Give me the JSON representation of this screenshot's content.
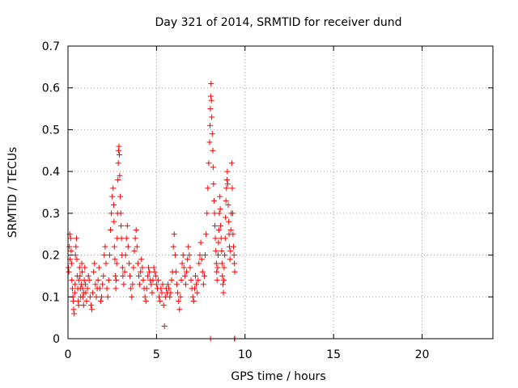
{
  "chart_data": {
    "type": "scatter",
    "title": "Day 321 of 2014, SRMTID for receiver dund",
    "xlabel": "GPS time / hours",
    "ylabel": "SRMTID / TECUs",
    "xlim": [
      0,
      24
    ],
    "ylim": [
      0,
      0.7
    ],
    "xticks": [
      0,
      5,
      10,
      15,
      20
    ],
    "yticks": [
      0,
      0.1,
      0.2,
      0.3,
      0.4,
      0.5,
      0.6,
      0.7
    ],
    "ytick_labels": [
      "0",
      "0.1",
      "0.2",
      "0.3",
      "0.4",
      "0.5",
      "0.6",
      "0.7"
    ],
    "grid": true,
    "marker": "plus",
    "color": "#ff0000",
    "series": [
      {
        "name": "SRMTID",
        "points": [
          [
            0.02,
            0.17
          ],
          [
            0.05,
            0.16
          ],
          [
            0.08,
            0.22
          ],
          [
            0.1,
            0.25
          ],
          [
            0.12,
            0.19
          ],
          [
            0.15,
            0.24
          ],
          [
            0.18,
            0.21
          ],
          [
            0.2,
            0.18
          ],
          [
            0.22,
            0.14
          ],
          [
            0.25,
            0.12
          ],
          [
            0.28,
            0.1
          ],
          [
            0.3,
            0.09
          ],
          [
            0.32,
            0.07
          ],
          [
            0.35,
            0.06
          ],
          [
            0.38,
            0.11
          ],
          [
            0.4,
            0.13
          ],
          [
            0.42,
            0.2
          ],
          [
            0.45,
            0.22
          ],
          [
            0.48,
            0.24
          ],
          [
            0.5,
            0.19
          ],
          [
            0.52,
            0.15
          ],
          [
            0.55,
            0.12
          ],
          [
            0.58,
            0.09
          ],
          [
            0.6,
            0.08
          ],
          [
            0.62,
            0.14
          ],
          [
            0.65,
            0.17
          ],
          [
            0.68,
            0.15
          ],
          [
            0.7,
            0.12
          ],
          [
            0.72,
            0.1
          ],
          [
            0.75,
            0.13
          ],
          [
            0.78,
            0.18
          ],
          [
            0.8,
            0.16
          ],
          [
            0.82,
            0.12
          ],
          [
            0.85,
            0.1
          ],
          [
            0.88,
            0.08
          ],
          [
            0.9,
            0.11
          ],
          [
            0.92,
            0.14
          ],
          [
            0.95,
            0.17
          ],
          [
            0.98,
            0.13
          ],
          [
            1.0,
            0.11
          ],
          [
            1.05,
            0.09
          ],
          [
            1.1,
            0.12
          ],
          [
            1.15,
            0.15
          ],
          [
            1.2,
            0.14
          ],
          [
            1.25,
            0.1
          ],
          [
            1.3,
            0.08
          ],
          [
            1.35,
            0.07
          ],
          [
            1.4,
            0.11
          ],
          [
            1.45,
            0.16
          ],
          [
            1.5,
            0.18
          ],
          [
            1.55,
            0.13
          ],
          [
            1.6,
            0.1
          ],
          [
            1.65,
            0.12
          ],
          [
            1.7,
            0.14
          ],
          [
            1.75,
            0.17
          ],
          [
            1.8,
            0.12
          ],
          [
            1.85,
            0.09
          ],
          [
            1.9,
            0.1
          ],
          [
            1.95,
            0.13
          ],
          [
            2.0,
            0.15
          ],
          [
            2.05,
            0.2
          ],
          [
            2.1,
            0.22
          ],
          [
            2.15,
            0.18
          ],
          [
            2.2,
            0.12
          ],
          [
            2.25,
            0.1
          ],
          [
            2.3,
            0.14
          ],
          [
            2.35,
            0.2
          ],
          [
            2.4,
            0.26
          ],
          [
            2.45,
            0.3
          ],
          [
            2.5,
            0.34
          ],
          [
            2.55,
            0.36
          ],
          [
            2.58,
            0.32
          ],
          [
            2.6,
            0.28
          ],
          [
            2.62,
            0.22
          ],
          [
            2.65,
            0.19
          ],
          [
            2.68,
            0.15
          ],
          [
            2.7,
            0.12
          ],
          [
            2.72,
            0.14
          ],
          [
            2.75,
            0.18
          ],
          [
            2.78,
            0.24
          ],
          [
            2.8,
            0.3
          ],
          [
            2.82,
            0.38
          ],
          [
            2.84,
            0.42
          ],
          [
            2.86,
            0.45
          ],
          [
            2.88,
            0.46
          ],
          [
            2.9,
            0.44
          ],
          [
            2.92,
            0.39
          ],
          [
            2.95,
            0.34
          ],
          [
            2.98,
            0.3
          ],
          [
            3.0,
            0.27
          ],
          [
            3.02,
            0.24
          ],
          [
            3.05,
            0.2
          ],
          [
            3.08,
            0.17
          ],
          [
            3.1,
            0.15
          ],
          [
            3.15,
            0.13
          ],
          [
            3.2,
            0.16
          ],
          [
            3.25,
            0.2
          ],
          [
            3.3,
            0.24
          ],
          [
            3.35,
            0.27
          ],
          [
            3.4,
            0.22
          ],
          [
            3.45,
            0.18
          ],
          [
            3.5,
            0.15
          ],
          [
            3.55,
            0.12
          ],
          [
            3.6,
            0.1
          ],
          [
            3.65,
            0.13
          ],
          [
            3.7,
            0.17
          ],
          [
            3.75,
            0.21
          ],
          [
            3.8,
            0.24
          ],
          [
            3.85,
            0.26
          ],
          [
            3.9,
            0.22
          ],
          [
            3.95,
            0.18
          ],
          [
            4.0,
            0.15
          ],
          [
            4.05,
            0.13
          ],
          [
            4.1,
            0.16
          ],
          [
            4.15,
            0.19
          ],
          [
            4.2,
            0.17
          ],
          [
            4.25,
            0.14
          ],
          [
            4.3,
            0.12
          ],
          [
            4.35,
            0.1
          ],
          [
            4.4,
            0.09
          ],
          [
            4.45,
            0.12
          ],
          [
            4.5,
            0.15
          ],
          [
            4.55,
            0.17
          ],
          [
            4.6,
            0.16
          ],
          [
            4.65,
            0.14
          ],
          [
            4.7,
            0.13
          ],
          [
            4.75,
            0.11
          ],
          [
            4.8,
            0.14
          ],
          [
            4.85,
            0.17
          ],
          [
            4.9,
            0.16
          ],
          [
            4.95,
            0.15
          ],
          [
            5.0,
            0.13
          ],
          [
            5.05,
            0.12
          ],
          [
            5.1,
            0.14
          ],
          [
            5.15,
            0.1
          ],
          [
            5.2,
            0.09
          ],
          [
            5.25,
            0.12
          ],
          [
            5.3,
            0.11
          ],
          [
            5.35,
            0.13
          ],
          [
            5.4,
            0.08
          ],
          [
            5.45,
            0.03
          ],
          [
            5.5,
            0.1
          ],
          [
            5.55,
            0.12
          ],
          [
            5.6,
            0.11
          ],
          [
            5.65,
            0.13
          ],
          [
            5.7,
            0.12
          ],
          [
            5.75,
            0.1
          ],
          [
            5.8,
            0.11
          ],
          [
            5.85,
            0.14
          ],
          [
            5.9,
            0.16
          ],
          [
            5.95,
            0.22
          ],
          [
            6.0,
            0.25
          ],
          [
            6.05,
            0.2
          ],
          [
            6.1,
            0.16
          ],
          [
            6.15,
            0.13
          ],
          [
            6.2,
            0.11
          ],
          [
            6.25,
            0.09
          ],
          [
            6.3,
            0.07
          ],
          [
            6.35,
            0.1
          ],
          [
            6.4,
            0.14
          ],
          [
            6.45,
            0.18
          ],
          [
            6.5,
            0.2
          ],
          [
            6.55,
            0.17
          ],
          [
            6.6,
            0.15
          ],
          [
            6.65,
            0.13
          ],
          [
            6.7,
            0.16
          ],
          [
            6.75,
            0.19
          ],
          [
            6.8,
            0.22
          ],
          [
            6.85,
            0.2
          ],
          [
            6.9,
            0.17
          ],
          [
            6.95,
            0.14
          ],
          [
            7.0,
            0.12
          ],
          [
            7.05,
            0.1
          ],
          [
            7.1,
            0.09
          ],
          [
            7.15,
            0.12
          ],
          [
            7.2,
            0.15
          ],
          [
            7.25,
            0.13
          ],
          [
            7.3,
            0.11
          ],
          [
            7.35,
            0.14
          ],
          [
            7.4,
            0.18
          ],
          [
            7.45,
            0.2
          ],
          [
            7.5,
            0.23
          ],
          [
            7.55,
            0.19
          ],
          [
            7.6,
            0.16
          ],
          [
            7.65,
            0.13
          ],
          [
            7.7,
            0.15
          ],
          [
            7.75,
            0.2
          ],
          [
            7.8,
            0.25
          ],
          [
            7.85,
            0.3
          ],
          [
            7.9,
            0.36
          ],
          [
            7.95,
            0.42
          ],
          [
            8.0,
            0.47
          ],
          [
            8.02,
            0.51
          ],
          [
            8.04,
            0.55
          ],
          [
            8.06,
            0.58
          ],
          [
            8.08,
            0.61
          ],
          [
            8.1,
            0.57
          ],
          [
            8.12,
            0.53
          ],
          [
            8.15,
            0.49
          ],
          [
            8.18,
            0.45
          ],
          [
            8.2,
            0.41
          ],
          [
            8.22,
            0.37
          ],
          [
            8.25,
            0.33
          ],
          [
            8.28,
            0.3
          ],
          [
            8.3,
            0.27
          ],
          [
            8.32,
            0.24
          ],
          [
            8.35,
            0.21
          ],
          [
            8.38,
            0.18
          ],
          [
            8.4,
            0.16
          ],
          [
            8.42,
            0.14
          ],
          [
            8.45,
            0.17
          ],
          [
            8.48,
            0.2
          ],
          [
            8.5,
            0.23
          ],
          [
            8.52,
            0.26
          ],
          [
            8.55,
            0.3
          ],
          [
            8.58,
            0.34
          ],
          [
            8.6,
            0.31
          ],
          [
            8.62,
            0.27
          ],
          [
            8.65,
            0.24
          ],
          [
            8.68,
            0.21
          ],
          [
            8.7,
            0.18
          ],
          [
            8.72,
            0.15
          ],
          [
            8.75,
            0.13
          ],
          [
            8.78,
            0.11
          ],
          [
            8.8,
            0.14
          ],
          [
            8.82,
            0.17
          ],
          [
            8.85,
            0.2
          ],
          [
            8.88,
            0.24
          ],
          [
            8.9,
            0.29
          ],
          [
            8.92,
            0.33
          ],
          [
            8.95,
            0.36
          ],
          [
            8.98,
            0.38
          ],
          [
            9.0,
            0.4
          ],
          [
            9.02,
            0.37
          ],
          [
            9.05,
            0.32
          ],
          [
            9.08,
            0.28
          ],
          [
            9.1,
            0.25
          ],
          [
            9.12,
            0.22
          ],
          [
            9.15,
            0.19
          ],
          [
            9.18,
            0.21
          ],
          [
            9.2,
            0.26
          ],
          [
            9.22,
            0.3
          ],
          [
            9.25,
            0.42
          ],
          [
            9.28,
            0.36
          ],
          [
            9.3,
            0.3
          ],
          [
            9.32,
            0.25
          ],
          [
            9.35,
            0.22
          ],
          [
            9.38,
            0.2
          ],
          [
            9.4,
            0.18
          ],
          [
            9.42,
            0.16
          ],
          [
            8.05,
            0.0
          ],
          [
            9.4,
            0.0
          ],
          [
            9.42,
            0.0
          ]
        ]
      }
    ]
  }
}
